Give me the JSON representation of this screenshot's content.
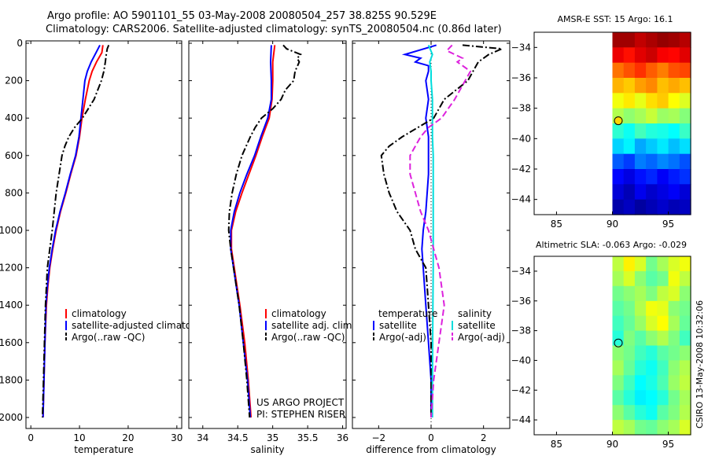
{
  "header": {
    "line1": "Argo profile: AO 5901101_55 03-May-2008 20080504_257 38.825S 90.529E",
    "line2": "Climatology: CARS2006. Satellite-adjusted climatology: synTS_20080504.nc (0.86d later)"
  },
  "side_label": "CSIRO 13-May-2008 10:32:06",
  "project_lines": [
    "US ARGO PROJECT",
    "PI: STEPHEN RISER"
  ],
  "colors": {
    "clim": "#ff0000",
    "sat": "#0000ff",
    "argo": "#000000",
    "sal_sat": "#00dddd",
    "sal_argo": "#dd22dd"
  },
  "chart_data": [
    {
      "id": "temperature",
      "type": "line",
      "xlabel": "temperature",
      "xlim": [
        -1,
        31
      ],
      "ylim": [
        2000,
        0
      ],
      "xticks": [
        0,
        10,
        20,
        30
      ],
      "yticks": [
        0,
        200,
        400,
        600,
        800,
        1000,
        1200,
        1400,
        1600,
        1800,
        2000
      ],
      "legend": [
        "climatology",
        "satellite-adjusted climatology",
        "Argo(..raw -QC)"
      ],
      "series": [
        {
          "name": "climatology",
          "style": "clim",
          "depth": [
            10,
            50,
            100,
            150,
            200,
            300,
            400,
            500,
            600,
            700,
            800,
            900,
            1000,
            1100,
            1200,
            1300,
            1400,
            1600,
            1800,
            2000
          ],
          "values": [
            14.8,
            14.6,
            13.5,
            12.6,
            12.0,
            11.2,
            10.5,
            10.0,
            9.3,
            8.2,
            7.2,
            6.1,
            5.2,
            4.5,
            3.9,
            3.5,
            3.2,
            2.9,
            2.7,
            2.5
          ]
        },
        {
          "name": "satellite-adjusted climatology",
          "style": "sat",
          "depth": [
            10,
            50,
            100,
            150,
            200,
            300,
            400,
            500,
            600,
            700,
            800,
            900,
            1000,
            1100,
            1200,
            1300,
            1400,
            1600,
            1800,
            2000
          ],
          "values": [
            14.2,
            13.4,
            12.4,
            11.6,
            11.1,
            10.7,
            10.3,
            9.9,
            9.2,
            8.1,
            7.1,
            6.0,
            5.1,
            4.4,
            3.8,
            3.4,
            3.1,
            2.9,
            2.7,
            2.5
          ]
        },
        {
          "name": "Argo(..raw -QC)",
          "style": "argo",
          "depth": [
            10,
            30,
            60,
            100,
            150,
            200,
            300,
            400,
            450,
            500,
            550,
            600,
            700,
            800,
            900,
            1000,
            1100,
            1200,
            1400,
            1600,
            1800,
            2000
          ],
          "values": [
            16.0,
            15.7,
            15.5,
            15.3,
            15.0,
            14.5,
            13.0,
            10.6,
            9.0,
            7.8,
            7.0,
            6.4,
            5.8,
            5.2,
            4.8,
            4.4,
            3.9,
            3.4,
            3.0,
            2.8,
            2.6,
            2.4
          ]
        }
      ]
    },
    {
      "id": "salinity",
      "type": "line",
      "xlabel": "salinity",
      "xlim": [
        33.8,
        36.05
      ],
      "ylim": [
        2000,
        0
      ],
      "xticks": [
        34,
        34.5,
        35,
        35.5,
        36
      ],
      "xticklabels": [
        "34",
        "34.5",
        "35",
        "35.5",
        "36"
      ],
      "legend": [
        "climatology",
        "satellite adj. clim.",
        "Argo(..raw -QC)"
      ],
      "series": [
        {
          "name": "climatology",
          "style": "clim",
          "depth": [
            10,
            100,
            200,
            300,
            400,
            500,
            600,
            700,
            800,
            900,
            1000,
            1100,
            1200,
            1300,
            1400,
            1600,
            1800,
            2000
          ],
          "values": [
            35.03,
            35.0,
            35.0,
            34.99,
            34.95,
            34.85,
            34.76,
            34.66,
            34.56,
            34.47,
            34.41,
            34.41,
            34.45,
            34.49,
            34.53,
            34.6,
            34.65,
            34.69
          ]
        },
        {
          "name": "satellite adj. clim.",
          "style": "sat",
          "depth": [
            10,
            100,
            200,
            300,
            400,
            500,
            600,
            700,
            800,
            900,
            1000,
            1100,
            1200,
            1300,
            1400,
            1600,
            1800,
            2000
          ],
          "values": [
            34.98,
            34.97,
            34.98,
            34.98,
            34.93,
            34.83,
            34.74,
            34.63,
            34.53,
            34.45,
            34.4,
            34.4,
            34.44,
            34.48,
            34.52,
            34.58,
            34.64,
            34.68
          ]
        },
        {
          "name": "Argo(..raw -QC)",
          "style": "argo",
          "depth": [
            10,
            30,
            60,
            80,
            100,
            150,
            200,
            250,
            300,
            350,
            400,
            450,
            500,
            600,
            700,
            800,
            900,
            1000,
            1100,
            1200,
            1400,
            1600,
            1800,
            2000
          ],
          "values": [
            35.15,
            35.2,
            35.4,
            35.35,
            35.38,
            35.32,
            35.3,
            35.18,
            35.12,
            35.0,
            34.84,
            34.75,
            34.68,
            34.56,
            34.48,
            34.42,
            34.38,
            34.37,
            34.4,
            34.44,
            34.52,
            34.58,
            34.63,
            34.67
          ]
        }
      ]
    },
    {
      "id": "difference",
      "type": "line",
      "xlabel": "difference from climatology",
      "xlim": [
        -3,
        3
      ],
      "ylim": [
        2000,
        0
      ],
      "xticks": [
        -2,
        0,
        2
      ],
      "xticklabels": [
        "−2",
        "0",
        "2"
      ],
      "legend_temperature_title": "temperature",
      "legend_salinity_title": "salinity",
      "legend_temperature": [
        "satellite",
        "Argo(-adj)"
      ],
      "legend_salinity": [
        "satellite",
        "Argo(-adj)"
      ],
      "series": [
        {
          "name": "temperature satellite",
          "style": "sat",
          "depth": [
            10,
            60,
            80,
            100,
            120,
            150,
            200,
            300,
            400,
            500,
            600,
            700,
            800,
            900,
            1000,
            1100,
            1200,
            1400,
            1600,
            1800,
            2000
          ],
          "values": [
            0.2,
            -1.0,
            -0.4,
            -0.6,
            -0.1,
            -0.1,
            -0.2,
            -0.1,
            -0.2,
            -0.1,
            -0.1,
            -0.1,
            -0.15,
            -0.2,
            -0.3,
            -0.35,
            -0.3,
            -0.2,
            -0.1,
            0,
            0
          ]
        },
        {
          "name": "temperature Argo(-adj)",
          "style": "argo",
          "depth": [
            10,
            30,
            60,
            100,
            150,
            200,
            300,
            400,
            450,
            500,
            550,
            600,
            700,
            800,
            900,
            1000,
            1100,
            1200,
            1400,
            1600,
            1800,
            2000
          ],
          "values": [
            1.2,
            2.7,
            2.2,
            1.8,
            1.6,
            1.4,
            0.5,
            0.1,
            -0.5,
            -1.1,
            -1.6,
            -1.9,
            -1.8,
            -1.6,
            -1.3,
            -0.8,
            -0.6,
            -0.2,
            -0.1,
            0,
            0,
            0
          ]
        },
        {
          "name": "salinity satellite",
          "style": "sal_sat",
          "depth": [
            10,
            60,
            100,
            150,
            200,
            300,
            400,
            500,
            600,
            700,
            800,
            900,
            1000,
            1100,
            1200,
            1400,
            1600,
            1800,
            2000
          ],
          "values": [
            -0.1,
            0.05,
            -0.05,
            0,
            0,
            0.05,
            0.05,
            0.05,
            0.08,
            0.08,
            0.08,
            0.08,
            0.08,
            0.08,
            0.08,
            0.07,
            0.06,
            0.05,
            0.05
          ]
        },
        {
          "name": "salinity Argo(-adj)",
          "style": "sal_argo",
          "depth": [
            10,
            40,
            80,
            100,
            150,
            200,
            300,
            400,
            450,
            500,
            600,
            700,
            800,
            900,
            1000,
            1100,
            1200,
            1400,
            1600,
            1800,
            2000
          ],
          "values": [
            0.8,
            0.6,
            1.2,
            1.0,
            1.5,
            1.3,
            0.9,
            0.4,
            -0.1,
            -0.4,
            -0.8,
            -0.8,
            -0.6,
            -0.4,
            -0.1,
            0.1,
            0.3,
            0.5,
            0.3,
            0.1,
            0
          ]
        }
      ]
    },
    {
      "id": "sst_map",
      "type": "heatmap",
      "title": "AMSR-E SST: 15 Argo: 16.1",
      "xlim": [
        83,
        97
      ],
      "ylim": [
        -45,
        -33
      ],
      "xticks": [
        85,
        90,
        95
      ],
      "yticks": [
        -34,
        -36,
        -38,
        -40,
        -42,
        -44
      ],
      "data_lon_range": [
        90,
        97
      ],
      "marker": {
        "lon": 90.529,
        "lat": -38.825
      },
      "rows_lat": [
        -33.5,
        -34.5,
        -35.5,
        -36.5,
        -37.5,
        -38.5,
        -39.5,
        -40.5,
        -41.5,
        -42.5,
        -43.5,
        -44.5
      ],
      "values": [
        [
          19.5,
          19.5,
          19.2,
          19.4,
          19.6,
          19.5,
          19.3
        ],
        [
          18.8,
          18.5,
          18.9,
          19.1,
          18.7,
          18.6,
          18.9
        ],
        [
          17.6,
          17.9,
          18.2,
          17.8,
          17.5,
          17.9,
          18.0
        ],
        [
          17.0,
          16.8,
          17.2,
          17.4,
          16.9,
          17.1,
          16.9
        ],
        [
          16.2,
          16.5,
          16.1,
          16.6,
          16.8,
          16.3,
          16.0
        ],
        [
          15.6,
          15.3,
          15.5,
          15.8,
          15.4,
          15.5,
          15.2
        ],
        [
          14.4,
          14.1,
          14.6,
          14.3,
          14.2,
          14.0,
          14.5
        ],
        [
          13.6,
          13.9,
          13.2,
          13.5,
          13.8,
          13.4,
          13.7
        ],
        [
          12.5,
          12.2,
          12.8,
          12.6,
          12.9,
          12.7,
          12.4
        ],
        [
          11.7,
          11.4,
          11.8,
          12.0,
          11.6,
          11.9,
          12.1
        ],
        [
          11.3,
          11.0,
          11.5,
          11.2,
          11.4,
          11.6,
          11.3
        ],
        [
          10.9,
          11.1,
          10.8,
          11.0,
          11.2,
          11.0,
          11.1
        ]
      ]
    },
    {
      "id": "sla_map",
      "type": "heatmap",
      "title": "Altimetric SLA: -0.063 Argo: -0.029",
      "xlim": [
        83,
        97
      ],
      "ylim": [
        -45,
        -33
      ],
      "xticks": [
        85,
        90,
        95
      ],
      "yticks": [
        -34,
        -36,
        -38,
        -40,
        -42,
        -44
      ],
      "data_lon_range": [
        90,
        97
      ],
      "marker": {
        "lon": 90.529,
        "lat": -38.825
      },
      "rows_lat": [
        -33.5,
        -34.5,
        -35.5,
        -36.5,
        -37.5,
        -38.5,
        -39.5,
        -40.5,
        -41.5,
        -42.5,
        -43.5,
        -44.5
      ],
      "values": [
        [
          0.1,
          0.16,
          0.12,
          0.04,
          0.08,
          0.12,
          0.14
        ],
        [
          0.08,
          0.12,
          0.06,
          0.02,
          0.04,
          0.14,
          0.1
        ],
        [
          0.04,
          0.06,
          0.08,
          0.05,
          0.1,
          0.12,
          0.06
        ],
        [
          0.02,
          0.04,
          0.09,
          0.14,
          0.13,
          0.06,
          0.04
        ],
        [
          0.0,
          0.03,
          0.07,
          0.12,
          0.15,
          0.08,
          0.03
        ],
        [
          -0.02,
          0.05,
          0.02,
          0.06,
          0.09,
          0.05,
          0.0
        ],
        [
          0.06,
          0.04,
          0.0,
          -0.02,
          0.02,
          0.04,
          0.06
        ],
        [
          0.08,
          0.03,
          -0.02,
          -0.04,
          0.0,
          0.06,
          0.09
        ],
        [
          0.05,
          0.0,
          -0.05,
          -0.03,
          0.01,
          0.07,
          0.1
        ],
        [
          0.02,
          -0.02,
          -0.06,
          -0.05,
          -0.02,
          0.04,
          0.08
        ],
        [
          0.06,
          0.02,
          -0.02,
          -0.04,
          0.02,
          0.05,
          0.09
        ],
        [
          0.1,
          0.08,
          0.04,
          0.03,
          0.06,
          0.08,
          0.12
        ]
      ]
    }
  ]
}
